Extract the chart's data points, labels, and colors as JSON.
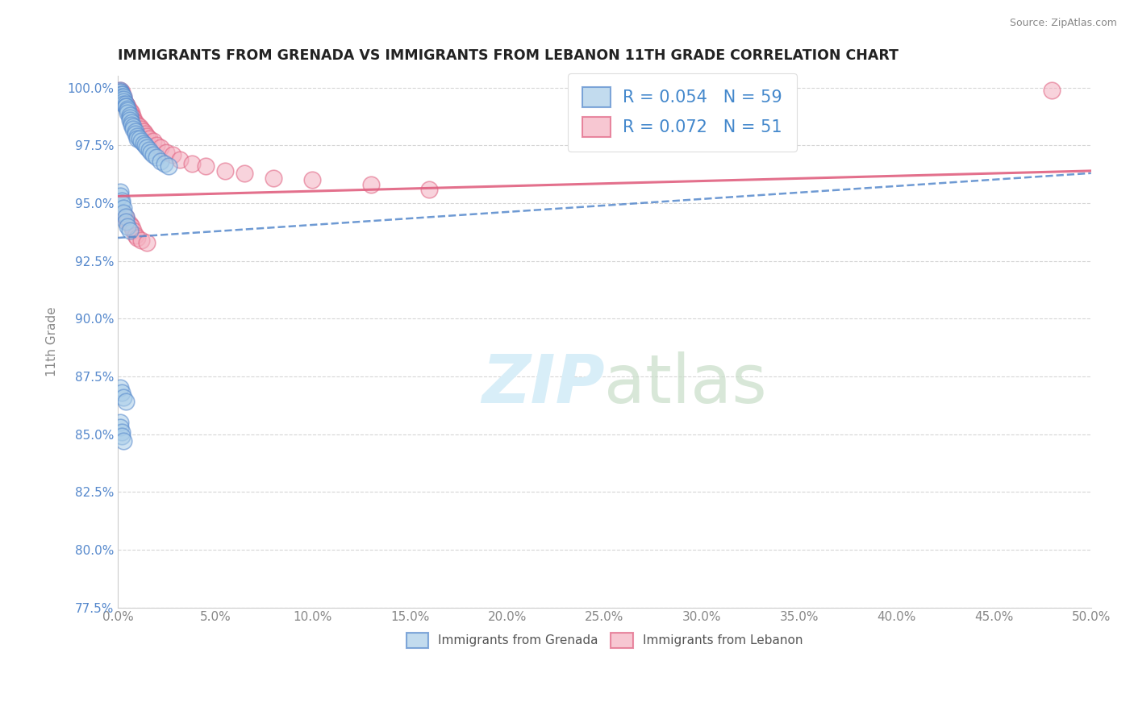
{
  "title": "IMMIGRANTS FROM GRENADA VS IMMIGRANTS FROM LEBANON 11TH GRADE CORRELATION CHART",
  "source": "Source: ZipAtlas.com",
  "ylabel": "11th Grade",
  "xmin": 0.0,
  "xmax": 0.5,
  "ymin": 0.775,
  "ymax": 1.005,
  "yticks": [
    0.775,
    0.8,
    0.825,
    0.85,
    0.875,
    0.9,
    0.925,
    0.95,
    0.975,
    1.0
  ],
  "xticks": [
    0.0,
    0.05,
    0.1,
    0.15,
    0.2,
    0.25,
    0.3,
    0.35,
    0.4,
    0.45,
    0.5
  ],
  "legend_label1": "Immigrants from Grenada",
  "legend_label2": "Immigrants from Lebanon",
  "R1": 0.054,
  "N1": 59,
  "R2": 0.072,
  "N2": 51,
  "color_blue": "#a8cce8",
  "color_pink": "#f4b0c0",
  "trendline_blue": "#5588cc",
  "trendline_pink": "#e06080",
  "watermark_color": "#d8eef8",
  "scatter_blue_x": [
    0.001,
    0.001,
    0.001,
    0.002,
    0.002,
    0.002,
    0.002,
    0.003,
    0.003,
    0.003,
    0.003,
    0.004,
    0.004,
    0.004,
    0.005,
    0.005,
    0.005,
    0.006,
    0.006,
    0.006,
    0.007,
    0.007,
    0.008,
    0.008,
    0.009,
    0.009,
    0.01,
    0.01,
    0.011,
    0.012,
    0.013,
    0.014,
    0.015,
    0.016,
    0.017,
    0.018,
    0.02,
    0.022,
    0.024,
    0.026,
    0.001,
    0.001,
    0.002,
    0.002,
    0.003,
    0.003,
    0.004,
    0.004,
    0.005,
    0.006,
    0.001,
    0.002,
    0.003,
    0.004,
    0.001,
    0.001,
    0.002,
    0.002,
    0.003
  ],
  "scatter_blue_y": [
    0.999,
    0.998,
    0.998,
    0.997,
    0.997,
    0.996,
    0.995,
    0.996,
    0.995,
    0.994,
    0.993,
    0.993,
    0.992,
    0.992,
    0.991,
    0.99,
    0.989,
    0.988,
    0.987,
    0.986,
    0.985,
    0.984,
    0.983,
    0.982,
    0.981,
    0.98,
    0.979,
    0.978,
    0.978,
    0.977,
    0.976,
    0.975,
    0.974,
    0.973,
    0.972,
    0.971,
    0.97,
    0.968,
    0.967,
    0.966,
    0.955,
    0.953,
    0.951,
    0.95,
    0.948,
    0.946,
    0.944,
    0.942,
    0.94,
    0.938,
    0.87,
    0.868,
    0.866,
    0.864,
    0.855,
    0.853,
    0.851,
    0.849,
    0.847
  ],
  "scatter_pink_x": [
    0.001,
    0.001,
    0.002,
    0.002,
    0.002,
    0.003,
    0.003,
    0.003,
    0.004,
    0.004,
    0.005,
    0.005,
    0.006,
    0.006,
    0.007,
    0.007,
    0.008,
    0.008,
    0.009,
    0.01,
    0.011,
    0.012,
    0.013,
    0.014,
    0.015,
    0.016,
    0.018,
    0.02,
    0.022,
    0.025,
    0.028,
    0.032,
    0.038,
    0.045,
    0.055,
    0.065,
    0.08,
    0.1,
    0.13,
    0.16,
    0.003,
    0.004,
    0.005,
    0.006,
    0.007,
    0.008,
    0.009,
    0.01,
    0.012,
    0.015,
    0.48
  ],
  "scatter_pink_y": [
    0.999,
    0.998,
    0.998,
    0.997,
    0.996,
    0.996,
    0.995,
    0.994,
    0.993,
    0.993,
    0.992,
    0.991,
    0.99,
    0.989,
    0.989,
    0.988,
    0.987,
    0.986,
    0.985,
    0.984,
    0.983,
    0.982,
    0.981,
    0.98,
    0.979,
    0.978,
    0.977,
    0.975,
    0.974,
    0.972,
    0.971,
    0.969,
    0.967,
    0.966,
    0.964,
    0.963,
    0.961,
    0.96,
    0.958,
    0.956,
    0.945,
    0.944,
    0.942,
    0.941,
    0.94,
    0.938,
    0.936,
    0.935,
    0.934,
    0.933,
    0.999
  ],
  "trend_blue_x0": 0.0,
  "trend_blue_y0": 0.935,
  "trend_blue_x1": 0.5,
  "trend_blue_y1": 0.963,
  "trend_pink_x0": 0.0,
  "trend_pink_y0": 0.953,
  "trend_pink_x1": 0.5,
  "trend_pink_y1": 0.964
}
